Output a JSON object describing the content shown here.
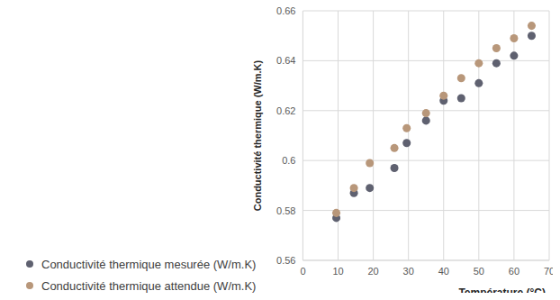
{
  "chart_data": {
    "type": "scatter",
    "x_label": "Température (°C)",
    "y_label": "Conductivité thermique (W/m.K)",
    "x": [
      9.5,
      14.5,
      19,
      26,
      29.5,
      35,
      40,
      45,
      50,
      55,
      60,
      65
    ],
    "series": [
      {
        "name": "Conductivité thermique mesurée (W/m.K)",
        "color": "#5f6170",
        "marker": "circle",
        "values": [
          0.577,
          0.587,
          0.589,
          0.597,
          0.607,
          0.616,
          0.624,
          0.625,
          0.631,
          0.639,
          0.642,
          0.65
        ]
      },
      {
        "name": "Conductivité thermique attendue (W/m.K)",
        "color": "#b8977a",
        "marker": "circle",
        "values": [
          0.579,
          0.589,
          0.599,
          0.605,
          0.613,
          0.619,
          0.626,
          0.633,
          0.639,
          0.645,
          0.649,
          0.654
        ]
      }
    ],
    "xlim": [
      0,
      70
    ],
    "xticks": [
      0,
      10,
      20,
      30,
      40,
      50,
      60,
      70
    ],
    "ylim": [
      0.56,
      0.66
    ],
    "yticks": [
      0.56,
      0.58,
      0.6,
      0.62,
      0.64,
      0.66
    ],
    "grid": true,
    "legend": "bottom-left"
  }
}
